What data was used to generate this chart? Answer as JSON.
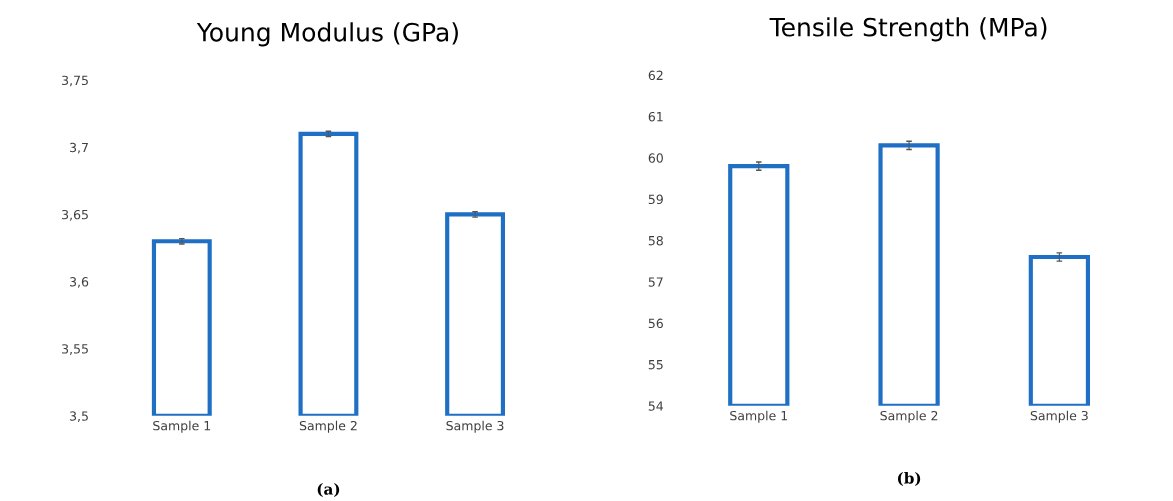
{
  "chart_data": [
    {
      "type": "bar",
      "title": "Young Modulus (GPa)",
      "categories": [
        "Sample 1",
        "Sample 2",
        "Sample 3"
      ],
      "values": [
        3.63,
        3.71,
        3.65
      ],
      "errors": [
        0.002,
        0.002,
        0.002
      ],
      "color": "#1f6fc5",
      "ylim": [
        3.5,
        3.75
      ],
      "yticks": [
        {
          "value": 3.5,
          "label": "3,5"
        },
        {
          "value": 3.55,
          "label": "3,55"
        },
        {
          "value": 3.6,
          "label": "3,6"
        },
        {
          "value": 3.65,
          "label": "3,65"
        },
        {
          "value": 3.7,
          "label": "3,7"
        },
        {
          "value": 3.75,
          "label": "3,75"
        }
      ],
      "annotations": [
        "(a)"
      ],
      "grid": false,
      "legend": false
    },
    {
      "type": "bar",
      "title": "Tensile Strength (MPa)",
      "categories": [
        "Sample 1",
        "Sample 2",
        "Sample 3"
      ],
      "values": [
        59.8,
        60.3,
        57.6
      ],
      "errors": [
        0.1,
        0.1,
        0.1
      ],
      "color": "#1f6fc5",
      "ylim": [
        54,
        62
      ],
      "yticks": [
        54,
        55,
        56,
        57,
        58,
        59,
        60,
        61,
        62
      ],
      "annotations": [
        "(b)"
      ],
      "grid": false,
      "legend": false
    }
  ]
}
